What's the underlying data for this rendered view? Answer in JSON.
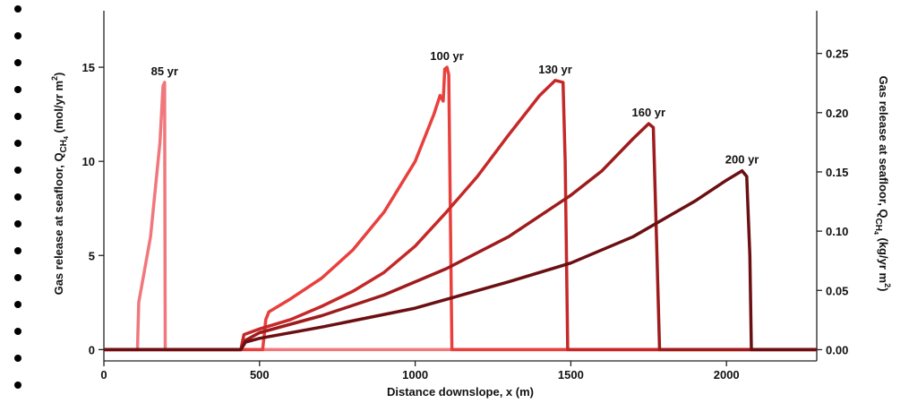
{
  "chart_data": {
    "type": "line",
    "xlabel": "Distance downslope, x (m)",
    "ylabel": [
      "Gas release at seafloor, Q",
      "CH",
      "4",
      " (mol/yr m",
      "2",
      ")"
    ],
    "y2label": [
      "Gas release at seafloor, Q",
      "CH",
      "4",
      " (kg/yr m",
      "2",
      ")"
    ],
    "xlim": [
      0,
      2290
    ],
    "ylim": [
      -0.6,
      18
    ],
    "y2lim": [
      -0.0095,
      0.286
    ],
    "xticks": [
      0,
      500,
      1000,
      1500,
      2000
    ],
    "yticks": [
      0,
      5,
      10,
      15
    ],
    "y2ticks": [
      {
        "value": 0,
        "label": "0.00"
      },
      {
        "value": 0.05,
        "label": "0.05"
      },
      {
        "value": 0.1,
        "label": "0.10"
      },
      {
        "value": 0.15,
        "label": "0.15"
      },
      {
        "value": 0.2,
        "label": "0.20"
      },
      {
        "value": 0.25,
        "label": "0.25"
      }
    ],
    "series": [
      {
        "name": "85 yr",
        "color": "#f0787c",
        "x": [
          0,
          108,
          112,
          150,
          180,
          185,
          190,
          195,
          197,
          2290
        ],
        "values": [
          0,
          0,
          2.5,
          6,
          11,
          12.5,
          14,
          14.2,
          0,
          0
        ]
      },
      {
        "name": "100 yr",
        "color": "#e8403c",
        "x": [
          0,
          510,
          520,
          530,
          600,
          700,
          800,
          900,
          1000,
          1060,
          1080,
          1090,
          1095,
          1102,
          1108,
          1118,
          2290
        ],
        "values": [
          0,
          0,
          1.6,
          2.0,
          2.7,
          3.8,
          5.3,
          7.3,
          10,
          12.5,
          13.5,
          13.2,
          14.9,
          15,
          14.6,
          0,
          0
        ]
      },
      {
        "name": "130 yr",
        "color": "#c62828",
        "x": [
          0,
          440,
          450,
          500,
          600,
          700,
          800,
          900,
          1000,
          1100,
          1200,
          1300,
          1400,
          1450,
          1475,
          1482,
          1490,
          2290
        ],
        "values": [
          0,
          0,
          0.8,
          1.1,
          1.6,
          2.3,
          3.1,
          4.1,
          5.5,
          7.3,
          9.2,
          11.4,
          13.5,
          14.3,
          14.2,
          10,
          0,
          0
        ]
      },
      {
        "name": "160 yr",
        "color": "#9e1b1d",
        "x": [
          0,
          440,
          455,
          500,
          700,
          900,
          1100,
          1300,
          1500,
          1600,
          1700,
          1750,
          1765,
          1775,
          1785,
          2290
        ],
        "values": [
          0,
          0,
          0.5,
          0.9,
          1.8,
          2.9,
          4.3,
          6.0,
          8.2,
          9.5,
          11.2,
          12,
          11.8,
          6,
          0,
          0
        ]
      },
      {
        "name": "200 yr",
        "color": "#6b0f12",
        "x": [
          0,
          440,
          455,
          500,
          700,
          1000,
          1300,
          1500,
          1700,
          1900,
          2000,
          2050,
          2065,
          2075,
          2080,
          2290
        ],
        "values": [
          0,
          0,
          0.4,
          0.6,
          1.2,
          2.2,
          3.6,
          4.6,
          6.0,
          7.9,
          9,
          9.5,
          9.2,
          5,
          0,
          0
        ]
      }
    ]
  }
}
